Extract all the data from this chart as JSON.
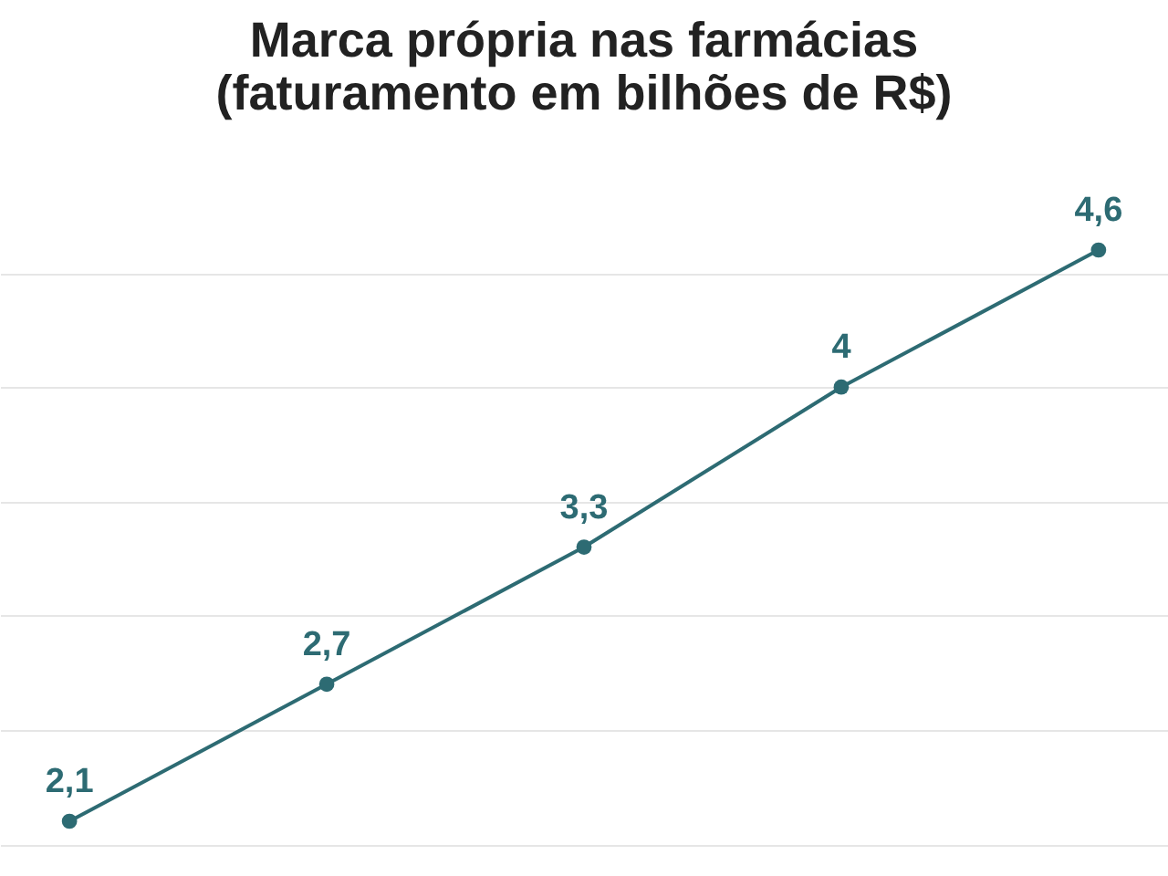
{
  "chart_data": {
    "type": "line",
    "title": [
      "Marca própria nas farmácias",
      "(faturamento em bilhões de R$)"
    ],
    "categories": [
      null,
      null,
      null,
      null,
      null
    ],
    "series": [
      {
        "color": "#2d6b73",
        "values": [
          2.1,
          2.7,
          3.3,
          4,
          4.6
        ],
        "value_labels": [
          "2,1",
          "2,7",
          "3,3",
          "4",
          "4,6"
        ]
      }
    ],
    "yticks": [
      {
        "value": 2,
        "label": null
      },
      {
        "value": 2.5,
        "label": null
      },
      {
        "value": 3,
        "label": null
      },
      {
        "value": 3.5,
        "label": null
      },
      {
        "value": 4,
        "label": null
      },
      {
        "value": 4.5,
        "label": null
      }
    ],
    "grid": "y",
    "tick_labels": false,
    "marker": "circle",
    "line_style": "solid"
  }
}
